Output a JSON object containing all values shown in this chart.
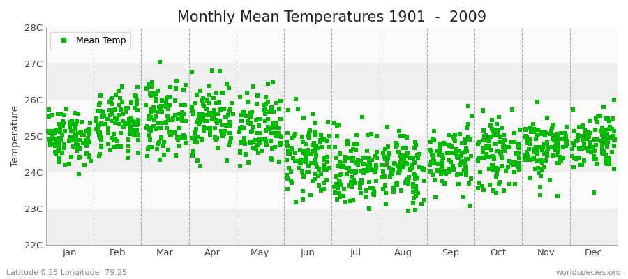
{
  "title": "Monthly Mean Temperatures 1901  -  2009",
  "ylabel": "Temperature",
  "subtitle_left": "Latitude 0.25 Longitude -79.25",
  "subtitle_right": "worldspecies.org",
  "legend_label": "Mean Temp",
  "dot_color": "#00bb00",
  "background_color": "#ffffff",
  "plot_bg_color": "#f2f2f2",
  "band_colors": [
    "#efefef",
    "#fafafa"
  ],
  "ylim": [
    22,
    28
  ],
  "yticks": [
    22,
    23,
    24,
    25,
    26,
    27,
    28
  ],
  "ytick_labels": [
    "22C",
    "23C",
    "24C",
    "25C",
    "26C",
    "27C",
    "28C"
  ],
  "months": [
    "Jan",
    "Feb",
    "Mar",
    "Apr",
    "May",
    "Jun",
    "Jul",
    "Aug",
    "Sep",
    "Oct",
    "Nov",
    "Dec"
  ],
  "month_means": [
    25.0,
    25.3,
    25.5,
    25.5,
    25.1,
    24.4,
    24.1,
    24.1,
    24.4,
    24.5,
    24.7,
    24.9
  ],
  "month_stds": [
    0.4,
    0.45,
    0.5,
    0.5,
    0.55,
    0.55,
    0.55,
    0.5,
    0.45,
    0.45,
    0.45,
    0.42
  ],
  "n_years": 109,
  "random_seed": 42,
  "dot_size": 15,
  "title_fontsize": 15,
  "axis_fontsize": 10,
  "tick_fontsize": 9.5,
  "legend_fontsize": 9
}
